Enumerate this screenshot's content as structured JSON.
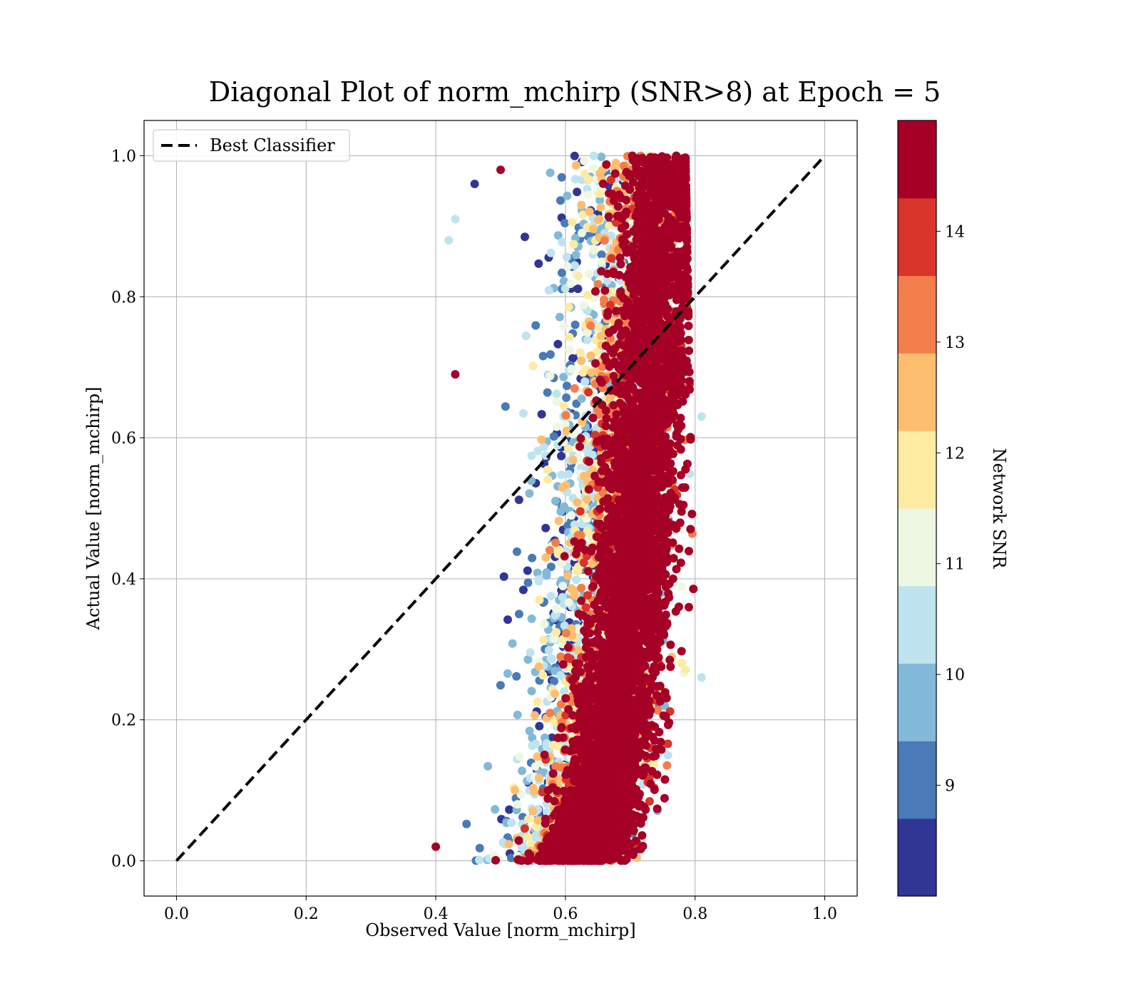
{
  "chart_data": {
    "type": "scatter",
    "title": "Diagonal Plot of norm_mchirp (SNR>8) at Epoch = 5",
    "xlabel": "Observed Value [norm_mchirp]",
    "ylabel": "Actual Value [norm_mchirp]",
    "xlim": [
      -0.05,
      1.05
    ],
    "ylim": [
      -0.05,
      1.05
    ],
    "x_ticks": [
      0.0,
      0.2,
      0.4,
      0.6,
      0.8,
      1.0
    ],
    "x_tick_labels": [
      "0.0",
      "0.2",
      "0.4",
      "0.6",
      "0.8",
      "1.0"
    ],
    "y_ticks": [
      0.0,
      0.2,
      0.4,
      0.6,
      0.8,
      1.0
    ],
    "y_tick_labels": [
      "0.0",
      "0.2",
      "0.4",
      "0.6",
      "0.8",
      "1.0"
    ],
    "grid": true,
    "legend": {
      "placement": "upper-left",
      "entries": [
        {
          "label": "Best Classifier",
          "style": "dashed",
          "color": "#000000"
        }
      ]
    },
    "reference_line": {
      "label": "Best Classifier",
      "x": [
        0.0,
        1.0
      ],
      "y": [
        0.0,
        1.0
      ],
      "style": "dashed",
      "color": "#000000"
    },
    "color_scale": {
      "label": "Network SNR",
      "range": [
        8.0,
        15.0
      ],
      "ticks": [
        9,
        10,
        11,
        12,
        13,
        14
      ],
      "tick_labels": [
        "9",
        "10",
        "11",
        "12",
        "13",
        "14"
      ],
      "colors": [
        "#313695",
        "#4a7ab7",
        "#83b9d8",
        "#bfe3ef",
        "#eef7e1",
        "#feeba2",
        "#fdbe70",
        "#f47d4c",
        "#d93429",
        "#a50026"
      ]
    },
    "scatter": {
      "description_points": [
        {
          "x": 0.46,
          "y": 0.96,
          "snr": 8.3
        },
        {
          "x": 0.42,
          "y": 0.88,
          "snr": 10.3
        },
        {
          "x": 0.43,
          "y": 0.91,
          "snr": 10.7
        },
        {
          "x": 0.5,
          "y": 0.98,
          "snr": 14.5
        },
        {
          "x": 0.43,
          "y": 0.69,
          "snr": 14.5
        },
        {
          "x": 0.81,
          "y": 0.63,
          "snr": 10.7
        },
        {
          "x": 0.81,
          "y": 0.26,
          "snr": 10.3
        },
        {
          "x": 0.4,
          "y": 0.02,
          "snr": 14.5
        }
      ],
      "point_count_approx": 9000
    }
  }
}
